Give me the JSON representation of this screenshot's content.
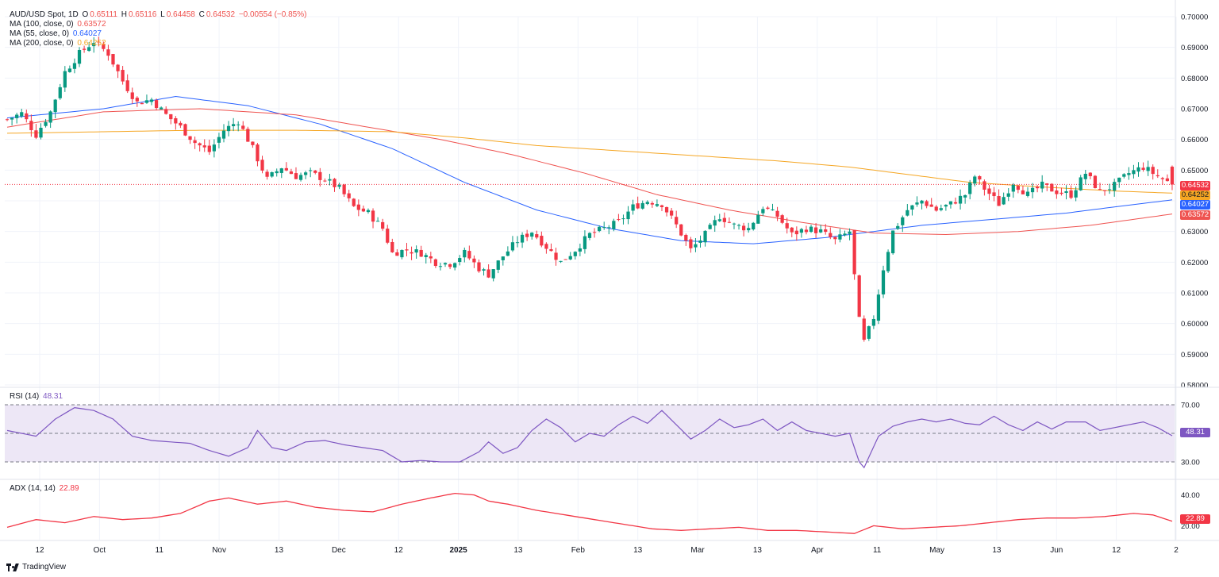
{
  "header": {
    "symbol": "AUD/USD Spot, 1D",
    "open_label": "O",
    "open": "0.65111",
    "high_label": "H",
    "high": "0.65116",
    "low_label": "L",
    "low": "0.64458",
    "close_label": "C",
    "close": "0.64532",
    "change": "−0.00554 (−0.85%)"
  },
  "indicators": {
    "ma100": {
      "label": "MA (100, close, 0)",
      "value": "0.63572",
      "color": "#ef5350"
    },
    "ma55": {
      "label": "MA (55, close, 0)",
      "value": "0.64027",
      "color": "#2962ff"
    },
    "ma200": {
      "label": "MA (200, close, 0)",
      "value": "0.64252",
      "color": "#f5a623"
    },
    "rsi": {
      "label": "RSI (14)",
      "value": "48.31",
      "color": "#7e57c2"
    },
    "adx": {
      "label": "ADX (14, 14)",
      "value": "22.89",
      "color": "#f23645"
    }
  },
  "badges": {
    "close": "0.64532",
    "ma200": "0.64252",
    "ma55": "0.64027",
    "ma100": "0.63572",
    "rsi": "48.31",
    "adx": "22.89"
  },
  "colors": {
    "up": "#089981",
    "down": "#f23645",
    "grid": "#f0f3fa",
    "rsi_band": "#ede7f6"
  },
  "brand": "TradingView",
  "chart_data": {
    "type": "candlestick",
    "title": "AUD/USD Spot, 1D",
    "price_axis": {
      "ticks": [
        "0.70000",
        "0.69000",
        "0.68000",
        "0.67000",
        "0.66000",
        "0.65000",
        "0.64000",
        "0.63000",
        "0.62000",
        "0.61000",
        "0.60000",
        "0.59000",
        "0.58000"
      ],
      "range": [
        0.58,
        0.7
      ]
    },
    "time_axis": {
      "labels": [
        "12",
        "Oct",
        "11",
        "Nov",
        "13",
        "Dec",
        "12",
        "2025",
        "13",
        "Feb",
        "13",
        "Mar",
        "13",
        "Apr",
        "11",
        "May",
        "13",
        "Jun",
        "12",
        "2"
      ]
    },
    "price_series_points": [
      [
        0,
        0.6665
      ],
      [
        3,
        0.6685
      ],
      [
        6,
        0.6615
      ],
      [
        9,
        0.669
      ],
      [
        12,
        0.682
      ],
      [
        15,
        0.688
      ],
      [
        18,
        0.692
      ],
      [
        21,
        0.688
      ],
      [
        24,
        0.679
      ],
      [
        27,
        0.672
      ],
      [
        30,
        0.673
      ],
      [
        33,
        0.668
      ],
      [
        36,
        0.664
      ],
      [
        39,
        0.659
      ],
      [
        42,
        0.656
      ],
      [
        45,
        0.663
      ],
      [
        48,
        0.666
      ],
      [
        51,
        0.657
      ],
      [
        54,
        0.647
      ],
      [
        57,
        0.651
      ],
      [
        60,
        0.648
      ],
      [
        63,
        0.649
      ],
      [
        66,
        0.647
      ],
      [
        69,
        0.644
      ],
      [
        72,
        0.638
      ],
      [
        75,
        0.636
      ],
      [
        78,
        0.631
      ],
      [
        80,
        0.623
      ],
      [
        83,
        0.624
      ],
      [
        86,
        0.623
      ],
      [
        89,
        0.62
      ],
      [
        92,
        0.6195
      ],
      [
        95,
        0.623
      ],
      [
        98,
        0.618
      ],
      [
        100,
        0.616
      ],
      [
        103,
        0.622
      ],
      [
        106,
        0.627
      ],
      [
        109,
        0.63
      ],
      [
        112,
        0.625
      ],
      [
        115,
        0.62
      ],
      [
        118,
        0.624
      ],
      [
        121,
        0.629
      ],
      [
        124,
        0.631
      ],
      [
        127,
        0.633
      ],
      [
        130,
        0.638
      ],
      [
        133,
        0.64
      ],
      [
        136,
        0.639
      ],
      [
        139,
        0.632
      ],
      [
        142,
        0.624
      ],
      [
        145,
        0.629
      ],
      [
        148,
        0.635
      ],
      [
        151,
        0.632
      ],
      [
        154,
        0.631
      ],
      [
        157,
        0.638
      ],
      [
        160,
        0.635
      ],
      [
        163,
        0.629
      ],
      [
        166,
        0.631
      ],
      [
        169,
        0.63
      ],
      [
        172,
        0.627
      ],
      [
        175,
        0.63
      ],
      [
        177,
        0.601
      ],
      [
        178,
        0.594
      ],
      [
        180,
        0.602
      ],
      [
        182,
        0.618
      ],
      [
        184,
        0.63
      ],
      [
        187,
        0.637
      ],
      [
        190,
        0.64
      ],
      [
        193,
        0.637
      ],
      [
        196,
        0.639
      ],
      [
        199,
        0.642
      ],
      [
        201,
        0.648
      ],
      [
        203,
        0.644
      ],
      [
        206,
        0.639
      ],
      [
        209,
        0.646
      ],
      [
        212,
        0.642
      ],
      [
        215,
        0.645
      ],
      [
        218,
        0.643
      ],
      [
        221,
        0.642
      ],
      [
        224,
        0.649
      ],
      [
        227,
        0.643
      ],
      [
        230,
        0.645
      ],
      [
        233,
        0.649
      ],
      [
        236,
        0.651
      ],
      [
        239,
        0.648
      ],
      [
        242,
        0.6453
      ]
    ],
    "moving_averages": {
      "MA (55)": [
        [
          0,
          0.667
        ],
        [
          20,
          0.67
        ],
        [
          35,
          0.674
        ],
        [
          50,
          0.671
        ],
        [
          65,
          0.665
        ],
        [
          80,
          0.657
        ],
        [
          95,
          0.646
        ],
        [
          110,
          0.637
        ],
        [
          125,
          0.631
        ],
        [
          140,
          0.627
        ],
        [
          155,
          0.626
        ],
        [
          170,
          0.628
        ],
        [
          180,
          0.63
        ],
        [
          190,
          0.632
        ],
        [
          205,
          0.634
        ],
        [
          220,
          0.636
        ],
        [
          230,
          0.638
        ],
        [
          242,
          0.6403
        ]
      ],
      "MA (100)": [
        [
          0,
          0.664
        ],
        [
          20,
          0.669
        ],
        [
          40,
          0.67
        ],
        [
          60,
          0.668
        ],
        [
          75,
          0.664
        ],
        [
          90,
          0.66
        ],
        [
          105,
          0.655
        ],
        [
          120,
          0.649
        ],
        [
          135,
          0.642
        ],
        [
          150,
          0.637
        ],
        [
          165,
          0.633
        ],
        [
          180,
          0.6295
        ],
        [
          195,
          0.629
        ],
        [
          210,
          0.63
        ],
        [
          225,
          0.632
        ],
        [
          242,
          0.6357
        ]
      ],
      "MA (200)": [
        [
          0,
          0.662
        ],
        [
          20,
          0.6625
        ],
        [
          40,
          0.663
        ],
        [
          60,
          0.663
        ],
        [
          80,
          0.6625
        ],
        [
          95,
          0.6605
        ],
        [
          110,
          0.658
        ],
        [
          125,
          0.6565
        ],
        [
          140,
          0.655
        ],
        [
          160,
          0.653
        ],
        [
          175,
          0.651
        ],
        [
          190,
          0.648
        ],
        [
          200,
          0.646
        ],
        [
          215,
          0.6445
        ],
        [
          230,
          0.6432
        ],
        [
          242,
          0.6425
        ]
      ]
    },
    "rsi": {
      "range": [
        20,
        80
      ],
      "ticks": [
        "70.00",
        "50.00",
        "30.00"
      ],
      "levels": [
        70,
        50,
        30
      ],
      "points": [
        [
          0,
          52
        ],
        [
          6,
          48
        ],
        [
          10,
          60
        ],
        [
          14,
          68
        ],
        [
          18,
          66
        ],
        [
          22,
          60
        ],
        [
          26,
          48
        ],
        [
          30,
          45
        ],
        [
          34,
          44
        ],
        [
          38,
          43
        ],
        [
          42,
          38
        ],
        [
          46,
          34
        ],
        [
          50,
          40
        ],
        [
          52,
          52
        ],
        [
          55,
          40
        ],
        [
          58,
          38
        ],
        [
          62,
          44
        ],
        [
          66,
          45
        ],
        [
          70,
          42
        ],
        [
          74,
          40
        ],
        [
          78,
          38
        ],
        [
          82,
          30
        ],
        [
          86,
          31
        ],
        [
          90,
          30
        ],
        [
          94,
          30
        ],
        [
          98,
          37
        ],
        [
          100,
          44
        ],
        [
          103,
          36
        ],
        [
          106,
          40
        ],
        [
          109,
          52
        ],
        [
          112,
          60
        ],
        [
          115,
          54
        ],
        [
          118,
          44
        ],
        [
          121,
          50
        ],
        [
          124,
          48
        ],
        [
          127,
          56
        ],
        [
          130,
          62
        ],
        [
          133,
          57
        ],
        [
          136,
          66
        ],
        [
          139,
          56
        ],
        [
          142,
          46
        ],
        [
          145,
          52
        ],
        [
          148,
          60
        ],
        [
          151,
          54
        ],
        [
          154,
          56
        ],
        [
          157,
          60
        ],
        [
          160,
          52
        ],
        [
          163,
          58
        ],
        [
          166,
          52
        ],
        [
          169,
          50
        ],
        [
          172,
          48
        ],
        [
          175,
          50
        ],
        [
          177,
          30
        ],
        [
          178,
          26
        ],
        [
          181,
          48
        ],
        [
          184,
          55
        ],
        [
          187,
          58
        ],
        [
          190,
          60
        ],
        [
          193,
          58
        ],
        [
          196,
          60
        ],
        [
          199,
          57
        ],
        [
          202,
          56
        ],
        [
          205,
          62
        ],
        [
          208,
          56
        ],
        [
          211,
          52
        ],
        [
          214,
          58
        ],
        [
          217,
          53
        ],
        [
          220,
          58
        ],
        [
          224,
          58
        ],
        [
          227,
          52
        ],
        [
          230,
          54
        ],
        [
          233,
          56
        ],
        [
          236,
          58
        ],
        [
          239,
          54
        ],
        [
          242,
          48.31
        ]
      ]
    },
    "adx": {
      "ticks": [
        "40.00",
        "20.00"
      ],
      "points": [
        [
          0,
          19
        ],
        [
          6,
          24
        ],
        [
          12,
          22
        ],
        [
          18,
          26
        ],
        [
          24,
          24
        ],
        [
          30,
          25
        ],
        [
          36,
          28
        ],
        [
          42,
          36
        ],
        [
          46,
          38
        ],
        [
          52,
          34
        ],
        [
          58,
          36
        ],
        [
          64,
          32
        ],
        [
          70,
          30
        ],
        [
          76,
          29
        ],
        [
          82,
          34
        ],
        [
          88,
          38
        ],
        [
          93,
          41
        ],
        [
          97,
          40
        ],
        [
          100,
          36
        ],
        [
          104,
          34
        ],
        [
          110,
          30
        ],
        [
          116,
          27
        ],
        [
          122,
          24
        ],
        [
          128,
          21
        ],
        [
          134,
          18
        ],
        [
          140,
          17
        ],
        [
          146,
          18
        ],
        [
          152,
          19
        ],
        [
          158,
          17
        ],
        [
          164,
          17
        ],
        [
          170,
          16
        ],
        [
          176,
          15
        ],
        [
          180,
          20
        ],
        [
          186,
          18
        ],
        [
          192,
          19
        ],
        [
          198,
          20
        ],
        [
          204,
          22
        ],
        [
          210,
          24
        ],
        [
          216,
          25
        ],
        [
          222,
          25
        ],
        [
          228,
          26
        ],
        [
          234,
          28
        ],
        [
          238,
          27
        ],
        [
          242,
          22.89
        ]
      ]
    }
  }
}
